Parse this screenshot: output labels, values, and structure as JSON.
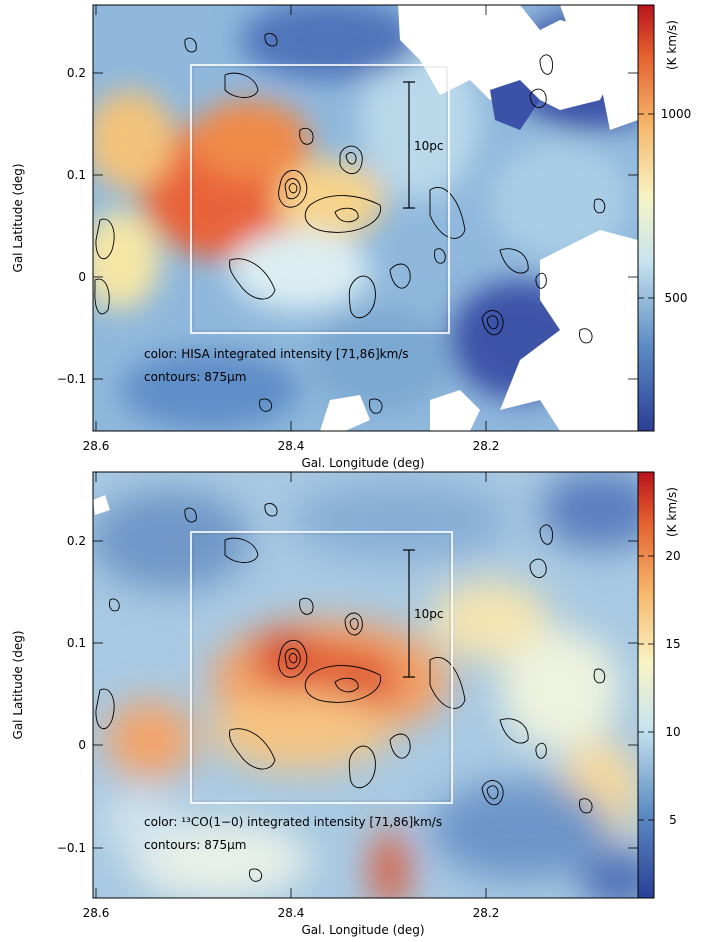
{
  "panels": [
    {
      "id": "top",
      "caption_line1": "color: HISA integrated intensity [71,86]km/s",
      "caption_line2": "contours: 875µm",
      "colorbar_unit": "(K km/s)",
      "colorbar_ticks": [
        {
          "label": "1000",
          "value": 1000
        },
        {
          "label": "500",
          "value": 500
        }
      ],
      "colorbar_range": [
        280,
        1400
      ],
      "scale_bar_label": "10pc",
      "xlabel": "Gal. Longitude (deg)",
      "ylabel": "Gal Latitude (deg)",
      "xticks": [
        "28.6",
        "28.4",
        "28.2"
      ],
      "yticks": [
        "0.2",
        "0.1",
        "0",
        "−0.1"
      ]
    },
    {
      "id": "bottom",
      "caption_line1": "color: ¹³CO(1−0) integrated intensity [71,86]km/s",
      "caption_line2": "contours: 875µm",
      "colorbar_unit": "(K km/s)",
      "colorbar_ticks": [
        {
          "label": "20",
          "value": 20
        },
        {
          "label": "15",
          "value": 15
        },
        {
          "label": "10",
          "value": 10
        },
        {
          "label": "5",
          "value": 5
        }
      ],
      "colorbar_range": [
        1,
        23
      ],
      "scale_bar_label": "10pc",
      "xlabel": "Gal. Longitude (deg)",
      "ylabel": "Gal Latitude (deg)",
      "xticks": [
        "28.6",
        "28.4",
        "28.2"
      ],
      "yticks": [
        "0.2",
        "0.1",
        "0",
        "−0.1"
      ]
    }
  ],
  "axes": {
    "lon_range": [
      28.6,
      28.04
    ],
    "lat_range": [
      -0.15,
      0.27
    ],
    "box_lon": [
      28.5,
      28.25
    ],
    "box_lat": [
      -0.055,
      0.21
    ]
  },
  "colors": {
    "low": "#3b4fa8",
    "mid": "#f7f5c8",
    "high": "#c21f1f"
  }
}
